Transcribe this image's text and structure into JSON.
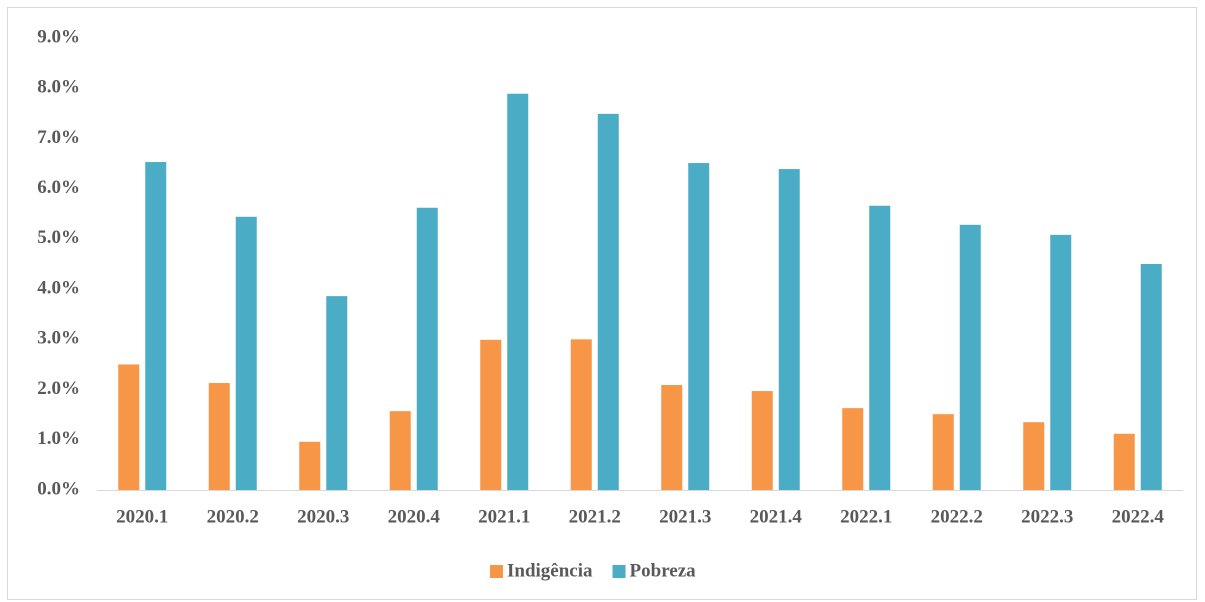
{
  "chart_data": {
    "type": "bar",
    "categories": [
      "2020.1",
      "2020.2",
      "2020.3",
      "2020.4",
      "2021.1",
      "2021.2",
      "2021.3",
      "2021.4",
      "2022.1",
      "2022.2",
      "2022.3",
      "2022.4"
    ],
    "series": [
      {
        "name": "Indigência",
        "color": "#f79646",
        "values": [
          2.5,
          2.13,
          0.96,
          1.57,
          2.99,
          3.0,
          2.09,
          1.97,
          1.63,
          1.51,
          1.35,
          1.12
        ]
      },
      {
        "name": "Pobreza",
        "color": "#4bacc6",
        "values": [
          6.53,
          5.44,
          3.86,
          5.62,
          7.89,
          7.49,
          6.51,
          6.39,
          5.66,
          5.28,
          5.08,
          4.5
        ]
      }
    ],
    "ylim": [
      0,
      9
    ],
    "yticks": [
      {
        "value": 0,
        "label": "0.0%"
      },
      {
        "value": 1,
        "label": "1.0%"
      },
      {
        "value": 2,
        "label": "2.0%"
      },
      {
        "value": 3,
        "label": "3.0%"
      },
      {
        "value": 4,
        "label": "4.0%"
      },
      {
        "value": 5,
        "label": "5.0%"
      },
      {
        "value": 6,
        "label": "6.0%"
      },
      {
        "value": 7,
        "label": "7.0%"
      },
      {
        "value": 8,
        "label": "8.0%"
      },
      {
        "value": 9,
        "label": "9.0%"
      }
    ],
    "grid": false,
    "legend": "bottom"
  }
}
